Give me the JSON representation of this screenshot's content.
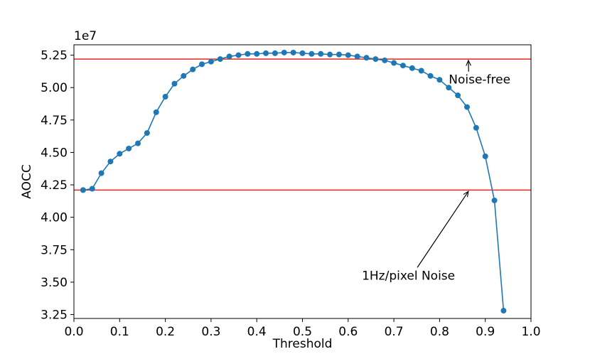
{
  "chart_data": {
    "type": "line",
    "xlabel": "Threshold",
    "ylabel": "AOCC",
    "y_multiplier_label": "1e7",
    "xlim": [
      0.0,
      1.0
    ],
    "ylim": [
      3.22,
      5.33
    ],
    "x_ticks": [
      "0.0",
      "0.1",
      "0.2",
      "0.3",
      "0.4",
      "0.5",
      "0.6",
      "0.7",
      "0.8",
      "0.9",
      "1.0"
    ],
    "y_ticks": [
      "3.25",
      "3.50",
      "3.75",
      "4.00",
      "4.25",
      "4.50",
      "4.75",
      "5.00",
      "5.25"
    ],
    "series": [
      {
        "color": "#1f77b4",
        "x": [
          0.02,
          0.04,
          0.06,
          0.08,
          0.1,
          0.12,
          0.14,
          0.16,
          0.18,
          0.2,
          0.22,
          0.24,
          0.26,
          0.28,
          0.3,
          0.32,
          0.34,
          0.36,
          0.38,
          0.4,
          0.42,
          0.44,
          0.46,
          0.48,
          0.5,
          0.52,
          0.54,
          0.56,
          0.58,
          0.6,
          0.62,
          0.64,
          0.66,
          0.68,
          0.7,
          0.72,
          0.74,
          0.76,
          0.78,
          0.8,
          0.82,
          0.84,
          0.86,
          0.88,
          0.9,
          0.92,
          0.94
        ],
        "y": [
          4.21,
          4.22,
          4.34,
          4.43,
          4.49,
          4.53,
          4.57,
          4.65,
          4.81,
          4.93,
          5.03,
          5.09,
          5.14,
          5.18,
          5.2,
          5.22,
          5.24,
          5.25,
          5.26,
          5.26,
          5.265,
          5.265,
          5.27,
          5.27,
          5.265,
          5.26,
          5.26,
          5.255,
          5.255,
          5.25,
          5.24,
          5.23,
          5.22,
          5.21,
          5.19,
          5.17,
          5.15,
          5.13,
          5.09,
          5.06,
          5.0,
          4.94,
          4.85,
          4.69,
          4.47,
          4.13,
          3.28
        ]
      }
    ],
    "reference_lines": [
      {
        "y": 5.22,
        "color": "#e8261f"
      },
      {
        "y": 4.21,
        "color": "#e8261f"
      }
    ],
    "annotations": [
      {
        "text": "Noise-free",
        "x_text": 0.82,
        "y_text": 5.03,
        "x_arrow": 0.863,
        "y_arrow": 5.21
      },
      {
        "text": "1Hz/pixel Noise",
        "x_text": 0.63,
        "y_text": 3.52,
        "x_arrow": 0.863,
        "y_arrow": 4.2
      }
    ],
    "grid": false,
    "legend": "none"
  }
}
